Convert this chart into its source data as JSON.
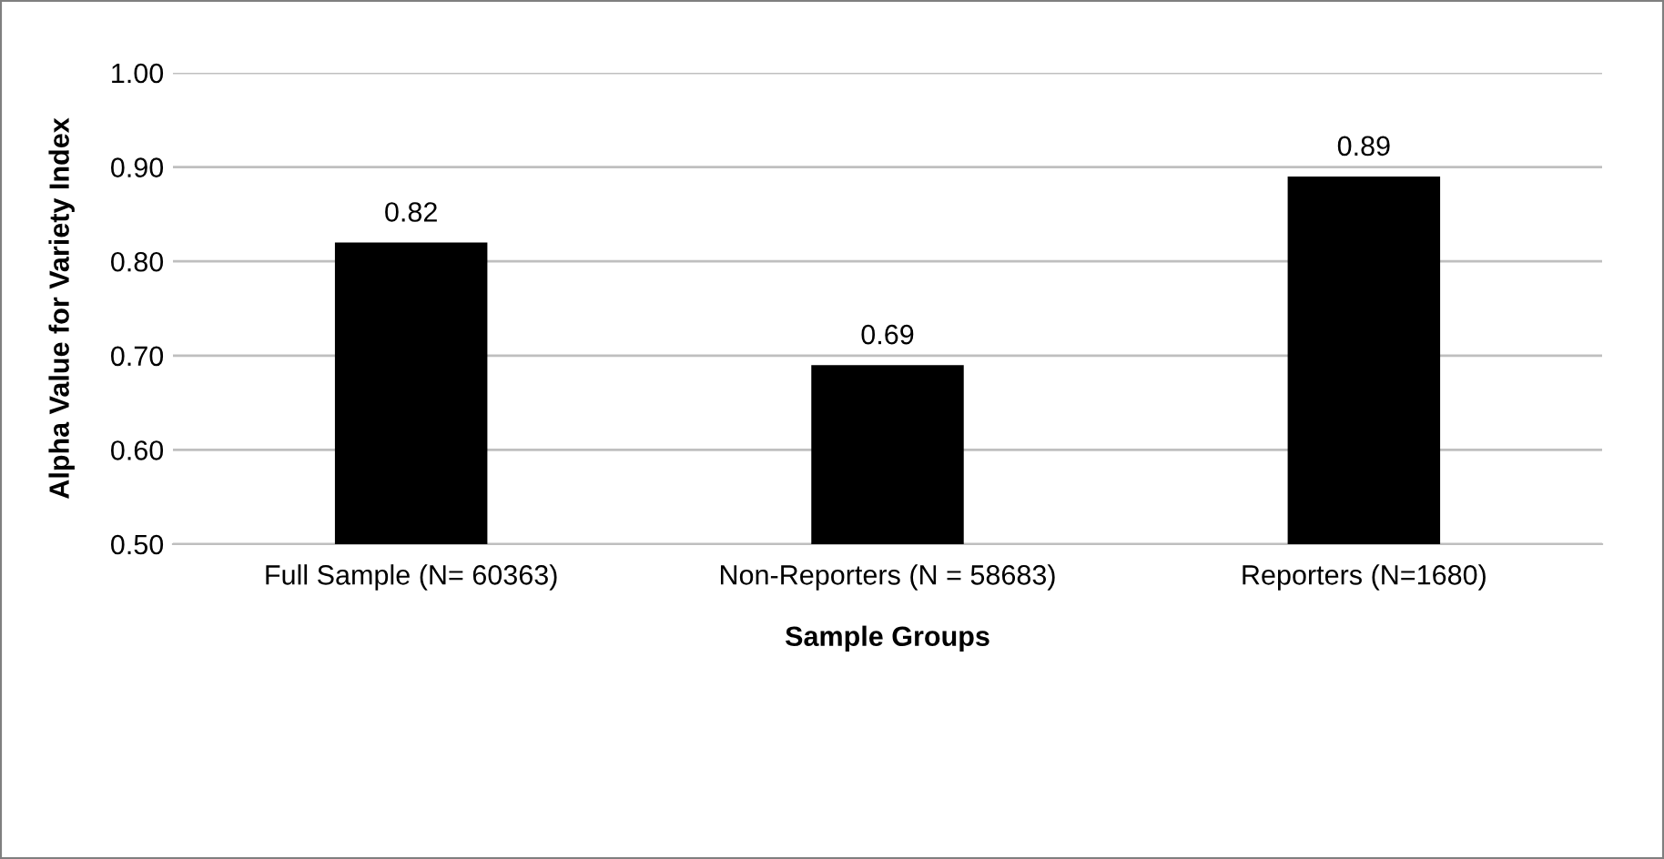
{
  "chart_data": {
    "type": "bar",
    "xlabel": "Sample Groups",
    "ylabel": "Alpha Value for Variety Index",
    "categories": [
      "Full Sample (N= 60363)",
      "Non-Reporters (N = 58683)",
      "Reporters (N=1680)"
    ],
    "values": [
      0.82,
      0.69,
      0.89
    ],
    "color": "#000000",
    "ylim": [
      0.5,
      1.0
    ],
    "yticks": [
      {
        "value": 0.5,
        "label": "0.50"
      },
      {
        "value": 0.6,
        "label": "0.60"
      },
      {
        "value": 0.7,
        "label": "0.70"
      },
      {
        "value": 0.8,
        "label": "0.80"
      },
      {
        "value": 0.9,
        "label": "0.90"
      },
      {
        "value": 1.0,
        "label": "1.00"
      }
    ],
    "grid": "y",
    "data_labels": true
  }
}
